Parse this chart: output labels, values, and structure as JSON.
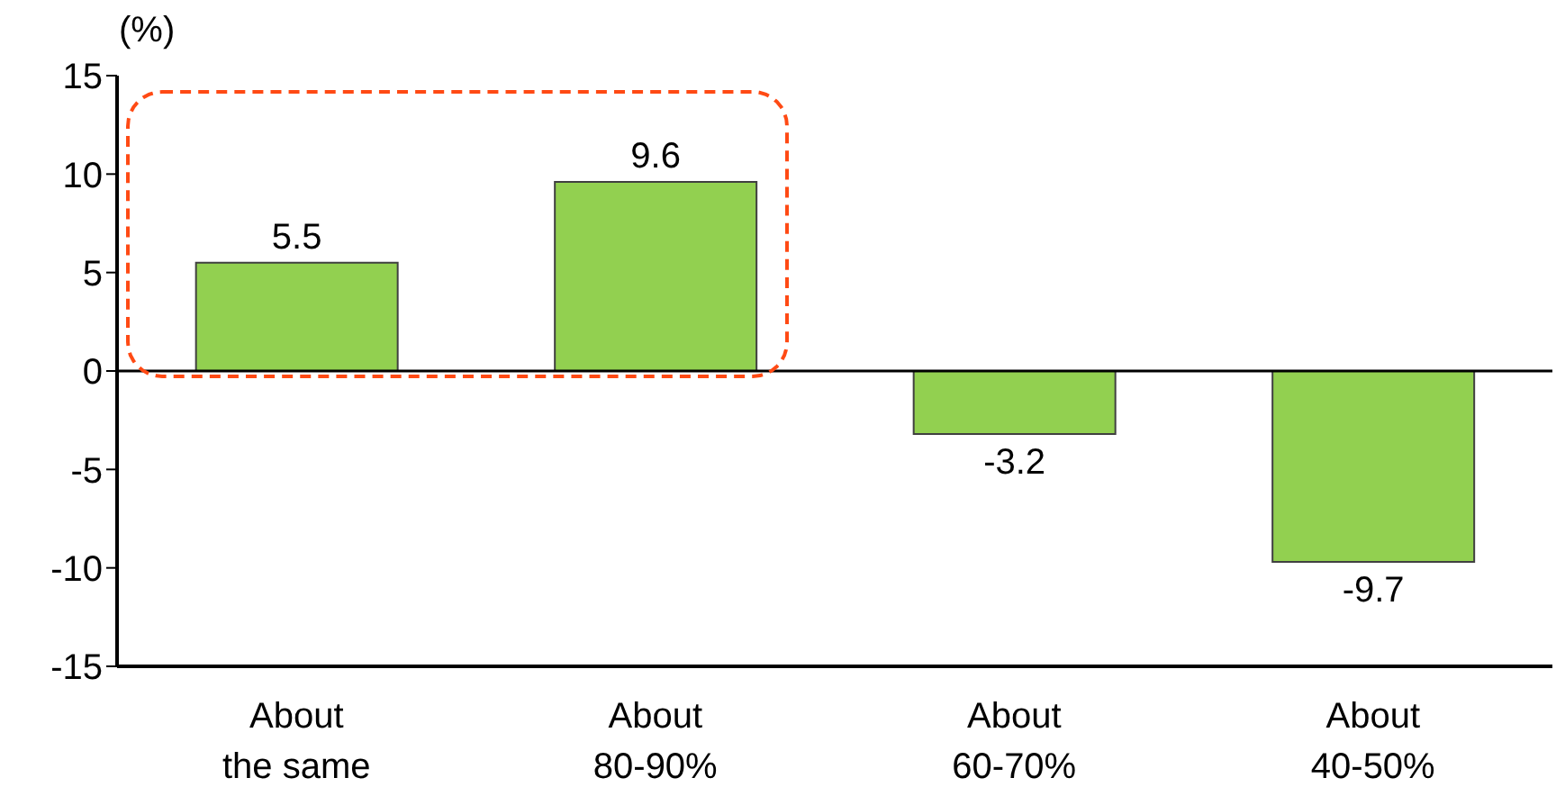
{
  "chart_data": {
    "type": "bar",
    "ylabel": "(%)",
    "categories": [
      "About the same",
      "About 80-90%",
      "About 60-70%",
      "About 40-50%"
    ],
    "values": [
      5.5,
      9.6,
      -3.2,
      -9.7
    ],
    "color": "#92d050",
    "ylim": [
      -15,
      15
    ],
    "yticks": [
      -15,
      -10,
      -5,
      0,
      5,
      10,
      15
    ],
    "grid": false,
    "data_labels": true,
    "ref_lines": [
      {
        "axis": "y",
        "value": 0
      }
    ]
  }
}
